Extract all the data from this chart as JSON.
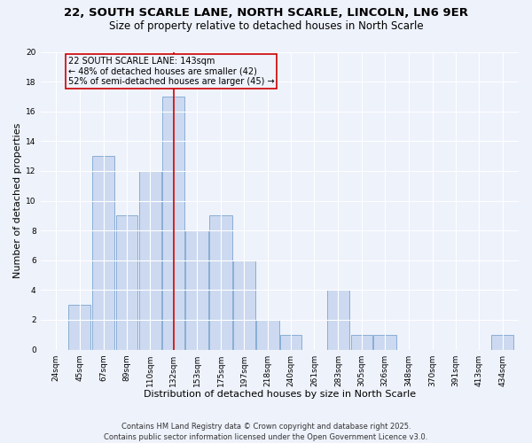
{
  "title_line1": "22, SOUTH SCARLE LANE, NORTH SCARLE, LINCOLN, LN6 9ER",
  "title_line2": "Size of property relative to detached houses in North Scarle",
  "xlabel": "Distribution of detached houses by size in North Scarle",
  "ylabel": "Number of detached properties",
  "bar_color": "#ccd9f0",
  "bar_edgecolor": "#89aed4",
  "background_color": "#eef2fb",
  "grid_color": "#ffffff",
  "vline_x": 143,
  "vline_color": "#cc0000",
  "annotation_text": "22 SOUTH SCARLE LANE: 143sqm\n← 48% of detached houses are smaller (42)\n52% of semi-detached houses are larger (45) →",
  "annotation_box_edgecolor": "#cc0000",
  "bins": [
    24,
    45,
    67,
    89,
    110,
    132,
    153,
    175,
    197,
    218,
    240,
    261,
    283,
    305,
    326,
    348,
    370,
    391,
    413,
    434,
    456
  ],
  "counts": [
    0,
    3,
    13,
    9,
    12,
    17,
    8,
    9,
    6,
    2,
    1,
    0,
    4,
    1,
    1,
    0,
    0,
    0,
    0,
    1
  ],
  "ylim": [
    0,
    20
  ],
  "yticks": [
    0,
    2,
    4,
    6,
    8,
    10,
    12,
    14,
    16,
    18,
    20
  ],
  "footer_text": "Contains HM Land Registry data © Crown copyright and database right 2025.\nContains public sector information licensed under the Open Government Licence v3.0.",
  "title_fontsize": 9.5,
  "subtitle_fontsize": 8.5,
  "axis_label_fontsize": 8,
  "tick_fontsize": 6.5,
  "footer_fontsize": 6,
  "annotation_fontsize": 7
}
